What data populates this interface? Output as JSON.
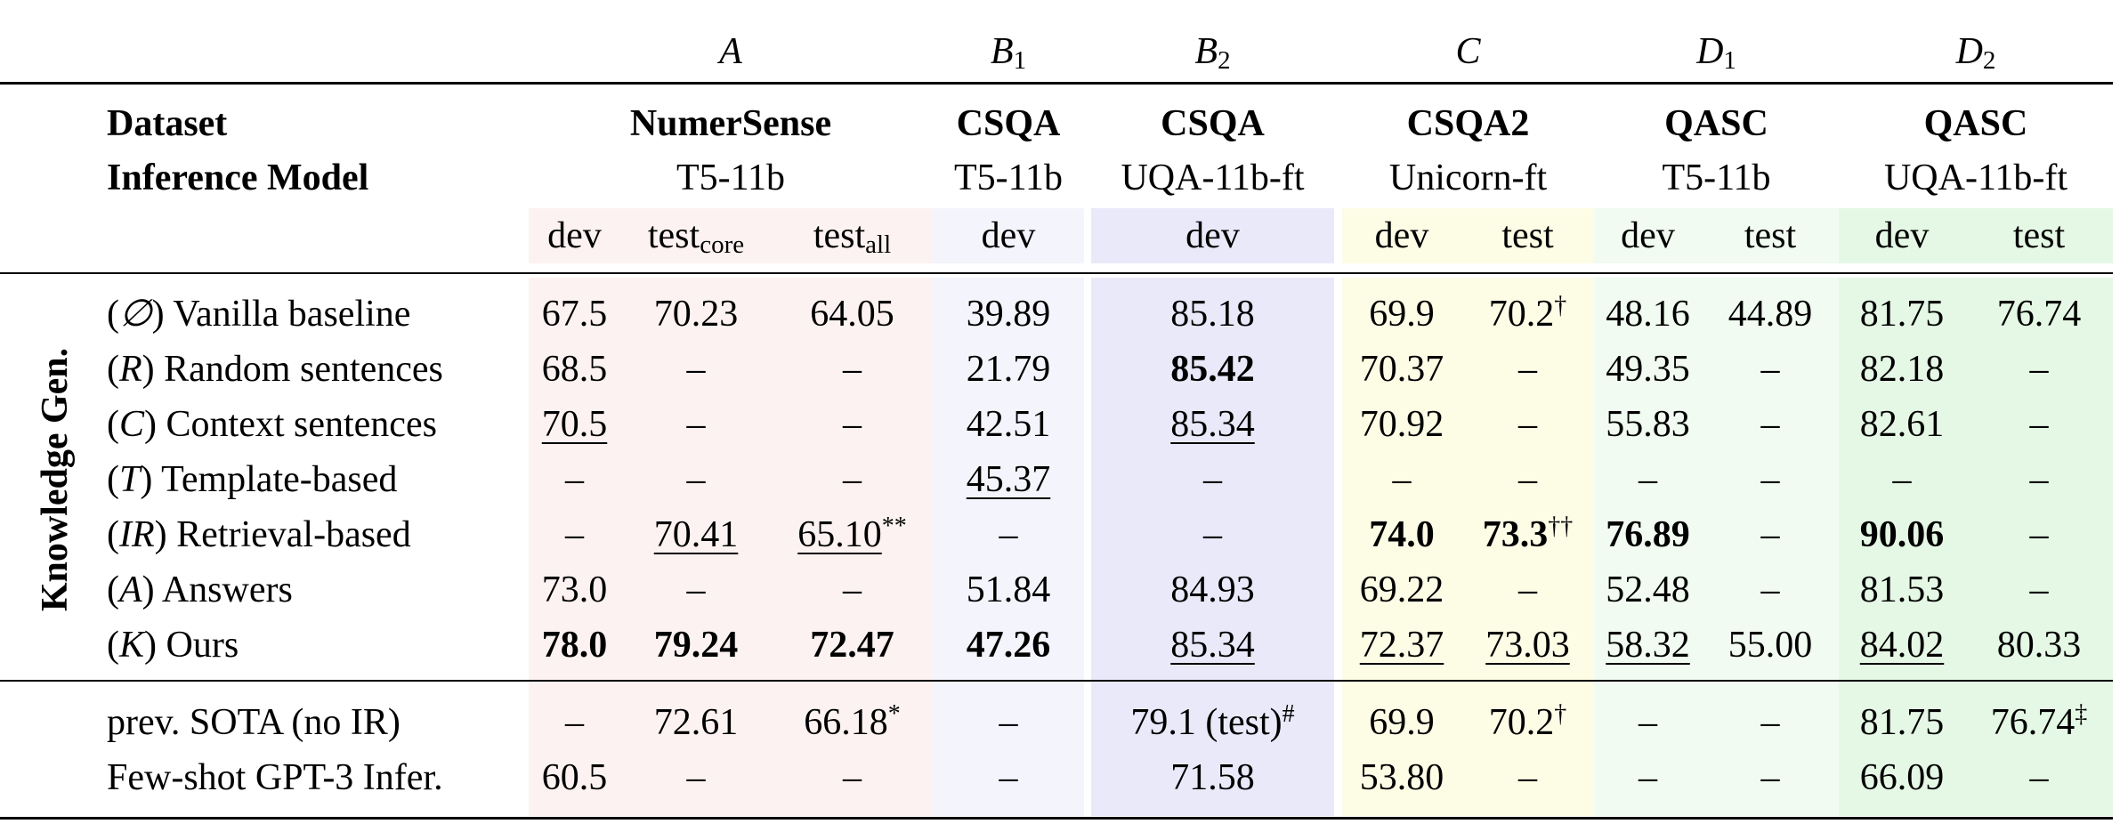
{
  "groups": [
    {
      "letter": "A",
      "dataset": "NumerSense",
      "model": "T5-11b",
      "color": "#fdf2f2",
      "splits": [
        {
          "text": "dev"
        },
        {
          "text": "test",
          "sub": "core"
        },
        {
          "text": "test",
          "sub": "all"
        }
      ]
    },
    {
      "letter": "B",
      "sub": "1",
      "dataset": "CSQA",
      "model": "T5-11b",
      "color": "#f4f4fc",
      "splits": [
        {
          "text": "dev"
        }
      ]
    },
    {
      "letter": "B",
      "sub": "2",
      "dataset": "CSQA",
      "model": "UQA-11b-ft",
      "color": "#e9e9fa",
      "splits": [
        {
          "text": "dev"
        }
      ]
    },
    {
      "letter": "C",
      "dataset": "CSQA2",
      "model": "Unicorn-ft",
      "color": "#fdfde6",
      "splits": [
        {
          "text": "dev"
        },
        {
          "text": "test"
        }
      ]
    },
    {
      "letter": "D",
      "sub": "1",
      "dataset": "QASC",
      "model": "T5-11b",
      "color": "#f1fbf1",
      "splits": [
        {
          "text": "dev"
        },
        {
          "text": "test"
        }
      ]
    },
    {
      "letter": "D",
      "sub": "2",
      "dataset": "QASC",
      "model": "UQA-11b-ft",
      "color": "#e5f8e5",
      "splits": [
        {
          "text": "dev"
        },
        {
          "text": "test"
        }
      ]
    }
  ],
  "header": {
    "dataset": "Dataset",
    "model": "Inference Model"
  },
  "section1": {
    "label": "Knowledge Gen.",
    "rows": [
      {
        "marker": "(∅)",
        "name": "Vanilla baseline",
        "cells": [
          "67.5",
          "70.23",
          "64.05",
          "39.89",
          "85.18",
          "69.9",
          {
            "v": "70.2",
            "sup": "†"
          },
          "48.16",
          "44.89",
          "81.75",
          "76.74"
        ]
      },
      {
        "marker": "(R)",
        "name": "Random sentences",
        "cells": [
          "68.5",
          "–",
          "–",
          "21.79",
          {
            "v": "85.42",
            "style": "bold"
          },
          "70.37",
          "–",
          "49.35",
          "–",
          "82.18",
          "–"
        ]
      },
      {
        "marker": "(C)",
        "name": "Context sentences",
        "cells": [
          {
            "v": "70.5",
            "style": "underline"
          },
          "–",
          "–",
          "42.51",
          {
            "v": "85.34",
            "style": "underline"
          },
          "70.92",
          "–",
          "55.83",
          "–",
          "82.61",
          "–"
        ]
      },
      {
        "marker": "(T)",
        "name": "Template-based",
        "cells": [
          "–",
          "–",
          "–",
          {
            "v": "45.37",
            "style": "underline"
          },
          "–",
          "–",
          "–",
          "–",
          "–",
          "–",
          "–"
        ]
      },
      {
        "marker": "(IR)",
        "name": "Retrieval-based",
        "cells": [
          "–",
          {
            "v": "70.41",
            "style": "underline"
          },
          {
            "v": "65.10",
            "style": "underline",
            "sup": "**"
          },
          "–",
          "–",
          {
            "v": "74.0",
            "style": "bold"
          },
          {
            "v": "73.3",
            "style": "bold",
            "sup": "††"
          },
          {
            "v": "76.89",
            "style": "bold"
          },
          "–",
          {
            "v": "90.06",
            "style": "bold"
          },
          "–"
        ]
      },
      {
        "marker": "(A)",
        "name": "Answers",
        "cells": [
          "73.0",
          "–",
          "–",
          "51.84",
          "84.93",
          "69.22",
          "–",
          "52.48",
          "–",
          "81.53",
          "–"
        ]
      },
      {
        "marker": "(K)",
        "name": "Ours",
        "cells": [
          {
            "v": "78.0",
            "style": "bold"
          },
          {
            "v": "79.24",
            "style": "bold"
          },
          {
            "v": "72.47",
            "style": "bold"
          },
          {
            "v": "47.26",
            "style": "bold"
          },
          {
            "v": "85.34",
            "style": "underline"
          },
          {
            "v": "72.37",
            "style": "underline"
          },
          {
            "v": "73.03",
            "style": "underline"
          },
          {
            "v": "58.32",
            "style": "underline"
          },
          "55.00",
          {
            "v": "84.02",
            "style": "underline"
          },
          "80.33"
        ]
      }
    ]
  },
  "section2": {
    "rows": [
      {
        "name": "prev. SOTA (no IR)",
        "cells": [
          "–",
          "72.61",
          {
            "v": "66.18",
            "sup": "*"
          },
          "–",
          {
            "v": "79.1 (test)",
            "sup": "#"
          },
          "69.9",
          {
            "v": "70.2",
            "sup": "†"
          },
          "–",
          "–",
          "81.75",
          {
            "v": "76.74",
            "sup": "‡"
          }
        ]
      },
      {
        "name": "Few-shot GPT-3 Infer.",
        "cells": [
          "60.5",
          "–",
          "–",
          "–",
          "71.58",
          "53.80",
          "–",
          "–",
          "–",
          "66.09",
          "–"
        ]
      }
    ]
  }
}
